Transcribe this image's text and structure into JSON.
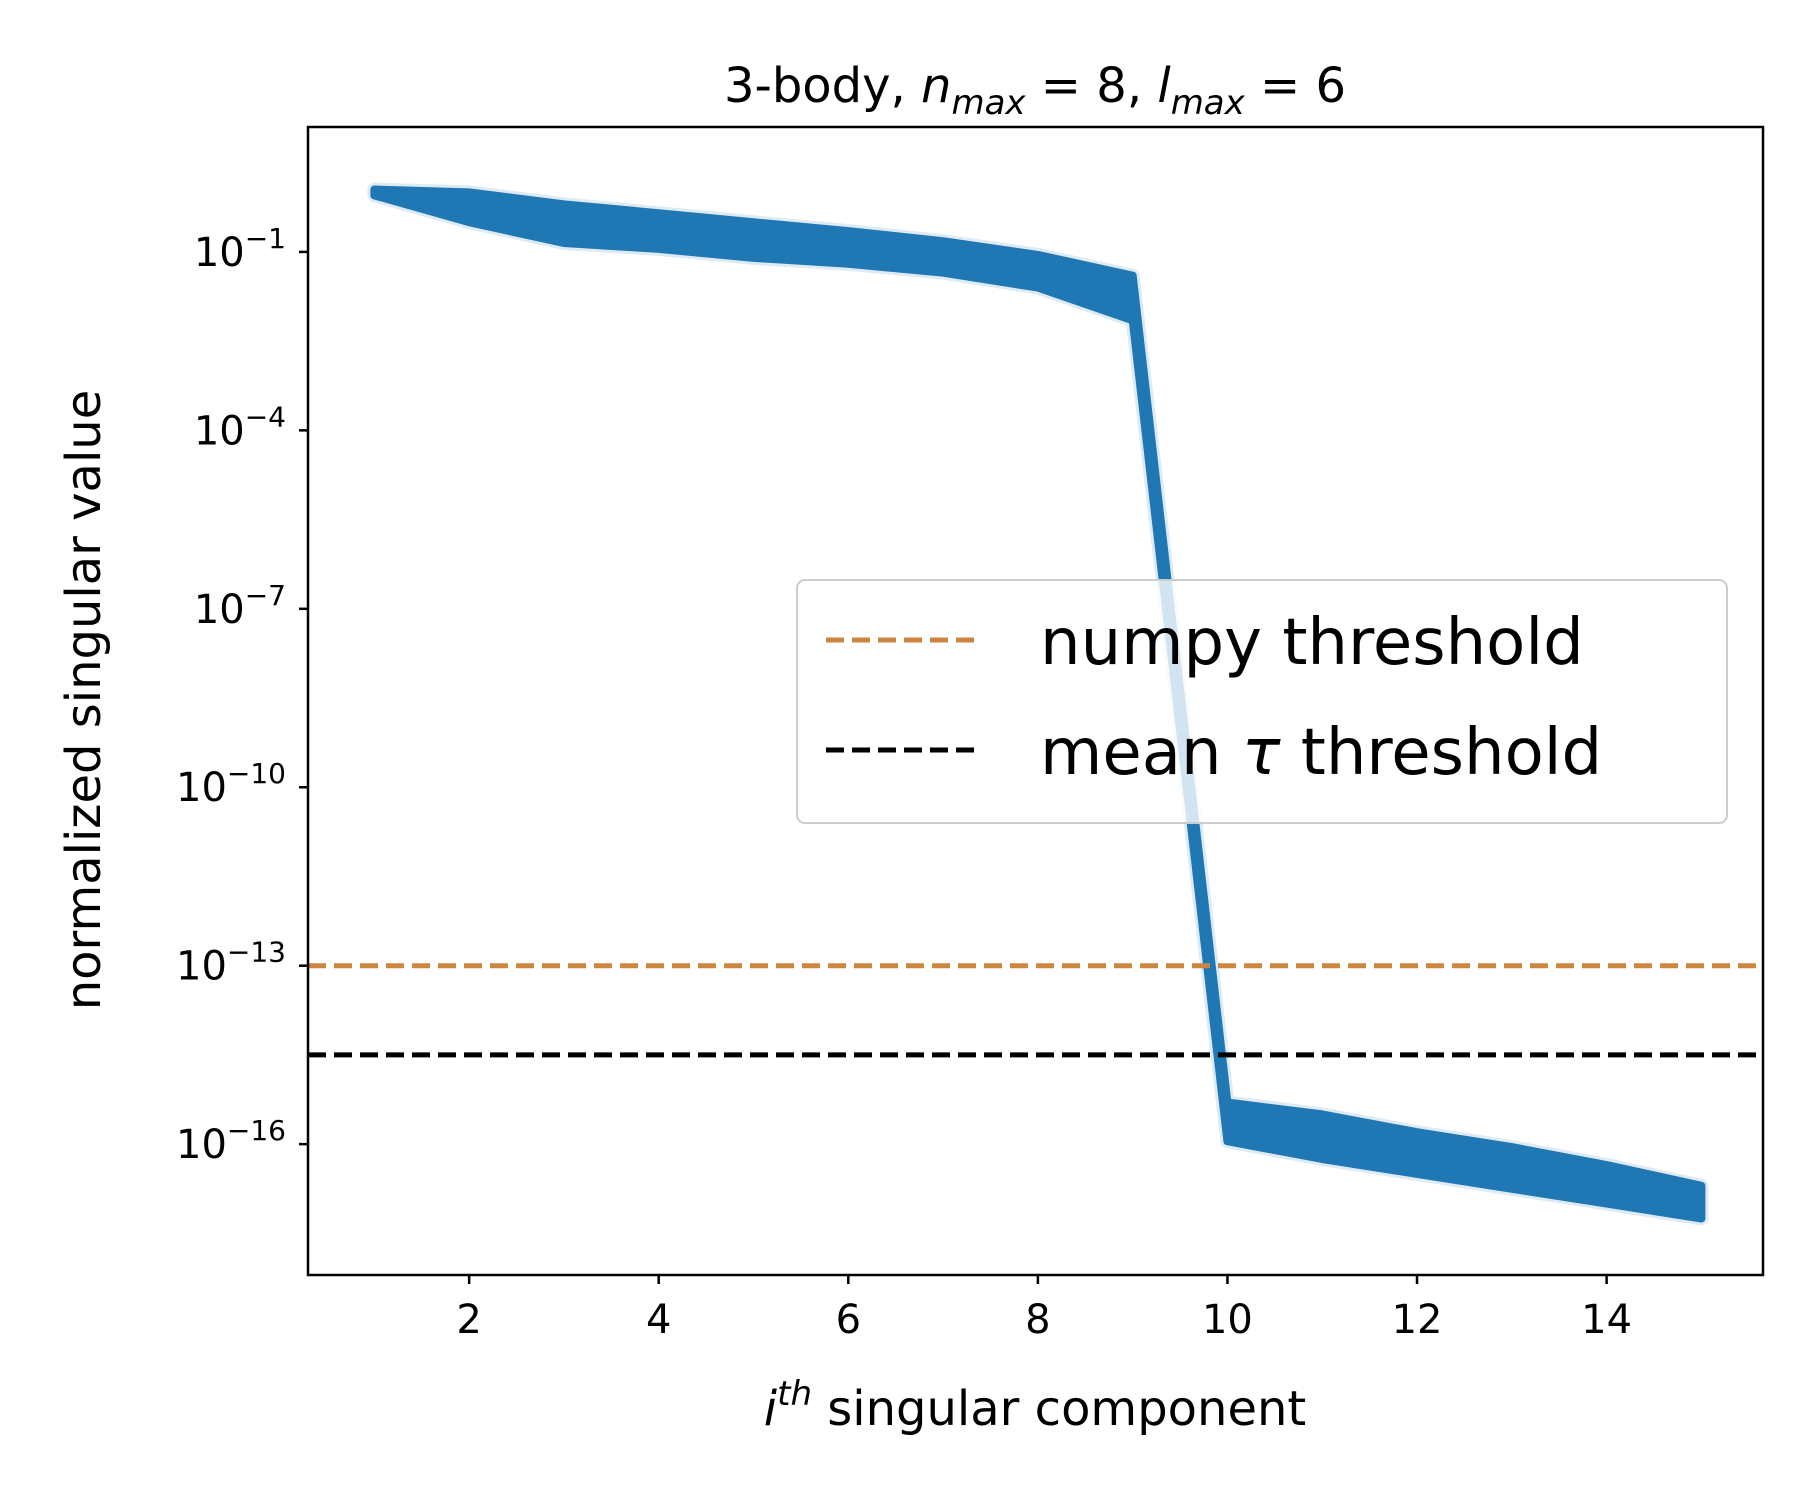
{
  "chart_data": {
    "type": "line",
    "title": {
      "prefix": "3-body, ",
      "var1": "n",
      "sub1": "max",
      "eq1": " = 8, ",
      "var2": "l",
      "sub2": "max",
      "eq2": " = 6"
    },
    "xlabel": {
      "italic": "i",
      "sup": "th",
      "rest": " singular component"
    },
    "ylabel": "normalized singular value",
    "x_scale": "linear",
    "y_scale": "log",
    "xlim": [
      0.3,
      15.65
    ],
    "ylim_log10": [
      -18.2,
      1.1
    ],
    "x_ticks": [
      2,
      4,
      6,
      8,
      10,
      12,
      14
    ],
    "y_ticks": [
      {
        "base": "10",
        "exp": "−1",
        "log10": -1
      },
      {
        "base": "10",
        "exp": "−4",
        "log10": -4
      },
      {
        "base": "10",
        "exp": "−7",
        "log10": -7
      },
      {
        "base": "10",
        "exp": "−10",
        "log10": -10
      },
      {
        "base": "10",
        "exp": "−13",
        "log10": -13
      },
      {
        "base": "10",
        "exp": "−16",
        "log10": -16
      }
    ],
    "series": [
      {
        "color": "#1f77b4",
        "x": [
          1,
          2,
          3,
          4,
          5,
          6,
          7,
          8,
          9,
          10,
          11,
          12,
          13,
          14,
          15
        ],
        "log10_upper": [
          0.05,
          0.0,
          -0.2,
          -0.35,
          -0.5,
          -0.65,
          -0.82,
          -1.05,
          -1.4,
          -15.3,
          -15.5,
          -15.8,
          -16.05,
          -16.35,
          -16.7
        ],
        "log10_lower": [
          -0.05,
          -0.5,
          -0.85,
          -0.95,
          -1.1,
          -1.2,
          -1.35,
          -1.6,
          -2.15,
          -15.95,
          -16.25,
          -16.5,
          -16.75,
          -17.0,
          -17.25
        ]
      }
    ],
    "reference_lines": [
      {
        "name": "numpy threshold",
        "log10": -13,
        "color": "#cd853f",
        "style": "dashed"
      },
      {
        "name": "mean τ threshold",
        "log10": -14.5,
        "color": "#000000",
        "style": "dashed"
      }
    ],
    "legend": {
      "position": "center-right",
      "entries": [
        {
          "label": "numpy threshold",
          "color": "#cd853f"
        },
        {
          "label_prefix": "mean ",
          "label_symbol": "τ",
          "label_suffix": " threshold",
          "color": "#000000"
        }
      ]
    },
    "grid": false
  }
}
